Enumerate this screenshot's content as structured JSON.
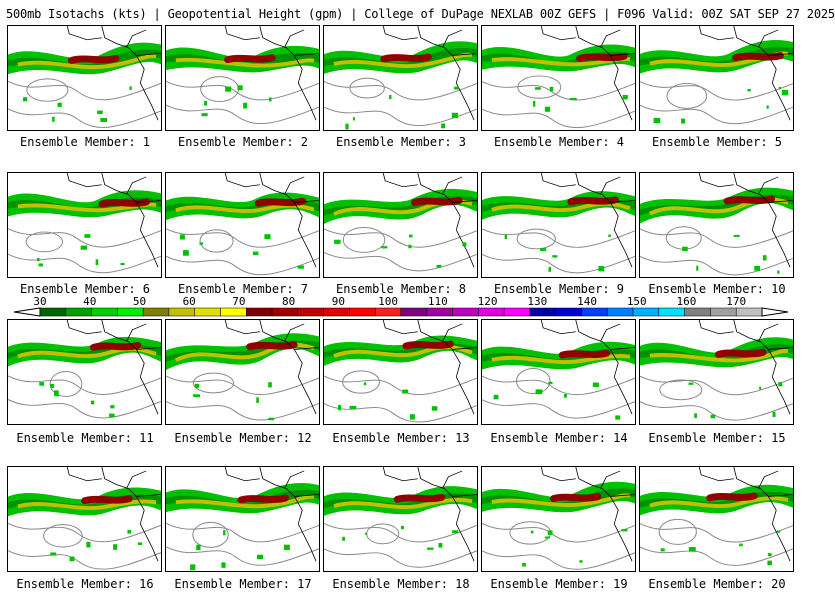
{
  "title": "500mb Isotachs (kts) | Geopotential Height (gpm) | College of DuPage NEXLAB   00Z GEFS | F096 Valid: 00Z SAT SEP 27 2025",
  "members": [
    "Ensemble Member: 1",
    "Ensemble Member: 2",
    "Ensemble Member: 3",
    "Ensemble Member: 4",
    "Ensemble Member: 5",
    "Ensemble Member: 6",
    "Ensemble Member: 7",
    "Ensemble Member: 8",
    "Ensemble Member: 9",
    "Ensemble Member: 10",
    "Ensemble Member: 11",
    "Ensemble Member: 12",
    "Ensemble Member: 13",
    "Ensemble Member: 14",
    "Ensemble Member: 15",
    "Ensemble Member: 16",
    "Ensemble Member: 17",
    "Ensemble Member: 18",
    "Ensemble Member: 19",
    "Ensemble Member: 20"
  ],
  "colorbar": {
    "ticks": [
      "30",
      "40",
      "50",
      "60",
      "70",
      "80",
      "90",
      "100",
      "110",
      "120",
      "130",
      "140",
      "150",
      "160",
      "170"
    ],
    "colors": [
      "#006400",
      "#00a000",
      "#00d000",
      "#00f000",
      "#808000",
      "#c0c000",
      "#e0e000",
      "#ffff00",
      "#800000",
      "#a00000",
      "#c00000",
      "#e00000",
      "#ff0000",
      "#ff2020",
      "#800080",
      "#a000a0",
      "#c000c0",
      "#e000e0",
      "#ff00ff",
      "#0000a0",
      "#0000d0",
      "#0040ff",
      "#0080ff",
      "#00b0ff",
      "#00e0ff",
      "#808080",
      "#a0a0a0",
      "#c0c0c0"
    ]
  },
  "jet_colors": {
    "light": "#00c000",
    "dark": "#006000",
    "mid": "#c0c000",
    "core": "#900000"
  }
}
